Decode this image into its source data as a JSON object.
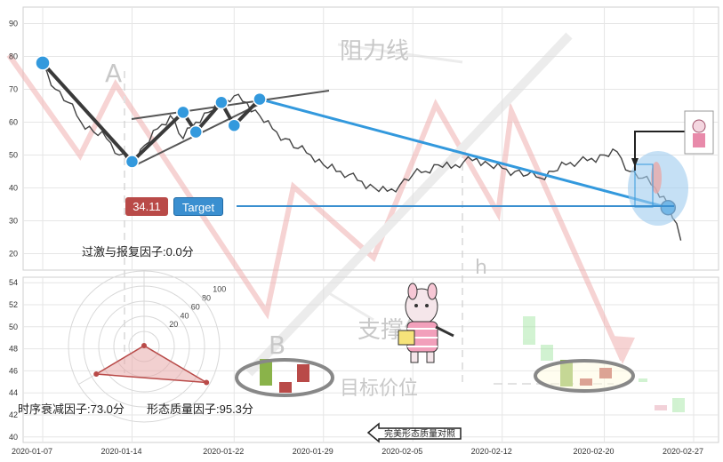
{
  "chart_data": [
    {
      "type": "line",
      "panel": "top",
      "y_axis": {
        "min": 15,
        "max": 95,
        "ticks": [
          20,
          30,
          40,
          50,
          60,
          70,
          80,
          90
        ]
      },
      "price_series": {
        "x": [
          "2020-01-07",
          "2020-01-08",
          "2020-01-09",
          "2020-01-10",
          "2020-01-11",
          "2020-01-12",
          "2020-01-13",
          "2020-01-14",
          "2020-01-15",
          "2020-01-16",
          "2020-01-17",
          "2020-01-18",
          "2020-01-19",
          "2020-01-20",
          "2020-01-21",
          "2020-01-22",
          "2020-01-23",
          "2020-01-24",
          "2020-01-25",
          "2020-01-26",
          "2020-01-27",
          "2020-01-28",
          "2020-01-29",
          "2020-01-30",
          "2020-01-31",
          "2020-02-01",
          "2020-02-02",
          "2020-02-03",
          "2020-02-04",
          "2020-02-05",
          "2020-02-06",
          "2020-02-07",
          "2020-02-08",
          "2020-02-09",
          "2020-02-10",
          "2020-02-11",
          "2020-02-12",
          "2020-02-13",
          "2020-02-14",
          "2020-02-15",
          "2020-02-16",
          "2020-02-17",
          "2020-02-18",
          "2020-02-19",
          "2020-02-20",
          "2020-02-21",
          "2020-02-22",
          "2020-02-23",
          "2020-02-24",
          "2020-02-25",
          "2020-02-26"
        ],
        "y": [
          78,
          70,
          66,
          60,
          57,
          55,
          50,
          48,
          53,
          58,
          62,
          55,
          60,
          63,
          66,
          68,
          66,
          62,
          58,
          55,
          52,
          50,
          47,
          45,
          44,
          42,
          40,
          39,
          41,
          44,
          45,
          47,
          46,
          48,
          49,
          47,
          46,
          45,
          44,
          43,
          45,
          47,
          48,
          49,
          50,
          51,
          45,
          43,
          40,
          35,
          24
        ]
      },
      "pattern_points": [
        {
          "x": "2020-01-07",
          "y": 78
        },
        {
          "x": "2020-01-14",
          "y": 48
        },
        {
          "x": "2020-01-18",
          "y": 63
        },
        {
          "x": "2020-01-19",
          "y": 57
        },
        {
          "x": "2020-01-21",
          "y": 66
        },
        {
          "x": "2020-01-22",
          "y": 59
        },
        {
          "x": "2020-01-24",
          "y": 67
        },
        {
          "x": "2020-02-25",
          "y": 34
        }
      ],
      "price_label": "34.11",
      "target_label": "Target",
      "annotations": [
        "阻力线",
        "支撑线",
        "目标价位",
        "A",
        "B",
        "h"
      ]
    },
    {
      "type": "bar",
      "panel": "bottom",
      "y_axis": {
        "min": 40,
        "max": 54,
        "ticks": [
          40,
          42,
          44,
          46,
          48,
          50,
          52,
          54
        ]
      },
      "x_ticks": [
        "2020-01-07",
        "2020-01-14",
        "2020-01-22",
        "2020-01-29",
        "2020-02-05",
        "2020-02-12",
        "2020-02-20",
        "2020-02-27"
      ],
      "radar": {
        "ticks": [
          20,
          40,
          60,
          80,
          100
        ],
        "factors": [
          {
            "name": "过激与报复因子",
            "score": 0.0,
            "label": "过激与报复因子:0.0分"
          },
          {
            "name": "时序衰减因子",
            "score": 73.0,
            "label": "时序衰减因子:73.0分"
          },
          {
            "name": "形态质量因子",
            "score": 95.3,
            "label": "形态质量因子:95.3分"
          }
        ]
      },
      "button_label": "完美形态质量对照"
    }
  ],
  "colors": {
    "price_label": "#b94a48",
    "target": "#3a8fd0",
    "up": "#8ab34a",
    "down": "#b94a48",
    "pattern": "#3399dd"
  },
  "icons": [
    "mascot-icon",
    "small-mascot-icon"
  ]
}
